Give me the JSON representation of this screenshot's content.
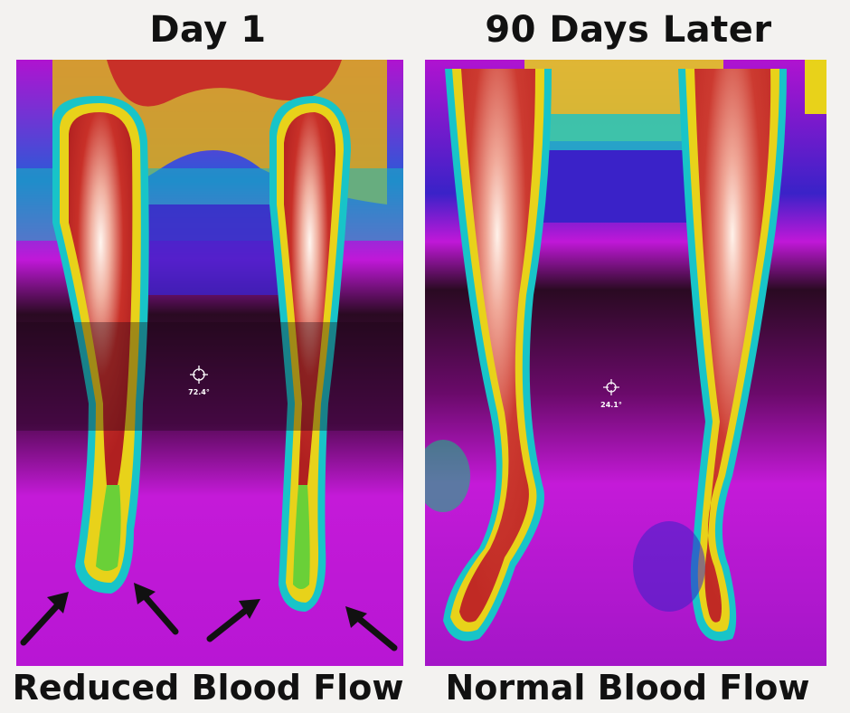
{
  "panels": [
    {
      "title": "Day 1",
      "temperature": "72.4°",
      "caption": "Reduced Blood Flow"
    },
    {
      "title": "90 Days Later",
      "temperature": "24.1°",
      "caption": "Normal Blood Flow"
    }
  ],
  "colors": {
    "background": "#f3f2f0",
    "hot": "#c8342a",
    "warm": "#e8d21a",
    "mid": "#18c4c8",
    "cool": "#3a23c8",
    "cold": "#c017d8",
    "coldest": "#1a0714"
  }
}
